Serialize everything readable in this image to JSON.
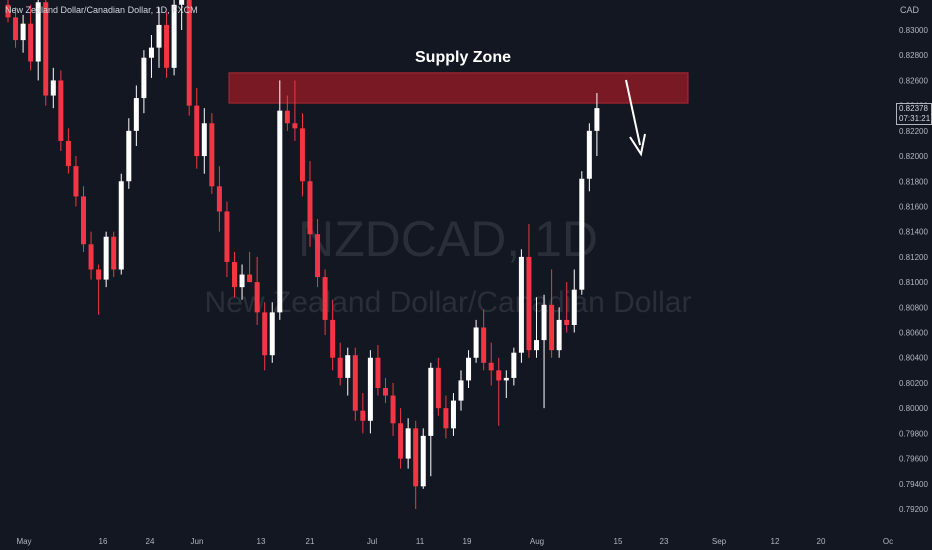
{
  "header": {
    "text": "New Zealand Dollar/Canadian Dollar, 1D, FXCM"
  },
  "axis_unit": "CAD",
  "price_tag": {
    "price": "0.82378",
    "countdown": "07:31:21"
  },
  "watermark": {
    "symbol": "NZDCAD, 1D",
    "name": "New Zealand Dollar/Canadian Dollar"
  },
  "colors": {
    "bull": "#ffffff",
    "bear": "#f23645",
    "zone": "#8b1a24",
    "background": "#131722"
  },
  "chart_data": {
    "type": "candlestick",
    "title": "",
    "y_ticks": [
      "0.83000",
      "0.82800",
      "0.82600",
      "0.82400",
      "0.82200",
      "0.82000",
      "0.81800",
      "0.81600",
      "0.81400",
      "0.81200",
      "0.81000",
      "0.80800",
      "0.80600",
      "0.80400",
      "0.80200",
      "0.80000",
      "0.79800",
      "0.79600",
      "0.79400",
      "0.79200"
    ],
    "x_ticks": [
      "May",
      "16",
      "24",
      "Jun",
      "13",
      "21",
      "Jul",
      "11",
      "19",
      "Aug",
      "15",
      "23",
      "Sep",
      "12",
      "20",
      "Oc"
    ],
    "ylim": [
      0.7912,
      0.8338
    ],
    "annotations": [
      {
        "type": "zone",
        "label": "Supply Zone",
        "y_low": 0.8242,
        "y_high": 0.8266
      },
      {
        "type": "arrow",
        "direction": "down"
      }
    ],
    "candles": [
      {
        "o": 0.832,
        "h": 0.8334,
        "l": 0.8306,
        "c": 0.831
      },
      {
        "o": 0.831,
        "h": 0.8318,
        "l": 0.8286,
        "c": 0.8292
      },
      {
        "o": 0.8292,
        "h": 0.8312,
        "l": 0.8282,
        "c": 0.8305
      },
      {
        "o": 0.8305,
        "h": 0.832,
        "l": 0.8268,
        "c": 0.8275
      },
      {
        "o": 0.8275,
        "h": 0.8328,
        "l": 0.826,
        "c": 0.8322
      },
      {
        "o": 0.8322,
        "h": 0.8334,
        "l": 0.824,
        "c": 0.8248
      },
      {
        "o": 0.8248,
        "h": 0.827,
        "l": 0.8238,
        "c": 0.826
      },
      {
        "o": 0.826,
        "h": 0.8268,
        "l": 0.8204,
        "c": 0.8212
      },
      {
        "o": 0.8212,
        "h": 0.8222,
        "l": 0.8186,
        "c": 0.8192
      },
      {
        "o": 0.8192,
        "h": 0.82,
        "l": 0.816,
        "c": 0.8168
      },
      {
        "o": 0.8168,
        "h": 0.8176,
        "l": 0.8124,
        "c": 0.813
      },
      {
        "o": 0.813,
        "h": 0.814,
        "l": 0.8102,
        "c": 0.811
      },
      {
        "o": 0.811,
        "h": 0.8114,
        "l": 0.8074,
        "c": 0.8102
      },
      {
        "o": 0.8102,
        "h": 0.814,
        "l": 0.8096,
        "c": 0.8136
      },
      {
        "o": 0.8136,
        "h": 0.814,
        "l": 0.8104,
        "c": 0.811
      },
      {
        "o": 0.811,
        "h": 0.8186,
        "l": 0.8106,
        "c": 0.818
      },
      {
        "o": 0.818,
        "h": 0.823,
        "l": 0.8174,
        "c": 0.822
      },
      {
        "o": 0.822,
        "h": 0.8256,
        "l": 0.8208,
        "c": 0.8246
      },
      {
        "o": 0.8246,
        "h": 0.8284,
        "l": 0.8234,
        "c": 0.8278
      },
      {
        "o": 0.8278,
        "h": 0.8296,
        "l": 0.8262,
        "c": 0.8286
      },
      {
        "o": 0.8286,
        "h": 0.8318,
        "l": 0.827,
        "c": 0.8304
      },
      {
        "o": 0.8304,
        "h": 0.8314,
        "l": 0.8262,
        "c": 0.827
      },
      {
        "o": 0.827,
        "h": 0.8328,
        "l": 0.8264,
        "c": 0.832
      },
      {
        "o": 0.832,
        "h": 0.8338,
        "l": 0.83,
        "c": 0.8326
      },
      {
        "o": 0.8326,
        "h": 0.8332,
        "l": 0.8232,
        "c": 0.824
      },
      {
        "o": 0.824,
        "h": 0.8254,
        "l": 0.819,
        "c": 0.82
      },
      {
        "o": 0.82,
        "h": 0.8238,
        "l": 0.8186,
        "c": 0.8226
      },
      {
        "o": 0.8226,
        "h": 0.8234,
        "l": 0.817,
        "c": 0.8176
      },
      {
        "o": 0.8176,
        "h": 0.8192,
        "l": 0.814,
        "c": 0.8156
      },
      {
        "o": 0.8156,
        "h": 0.8164,
        "l": 0.8104,
        "c": 0.8116
      },
      {
        "o": 0.8116,
        "h": 0.8124,
        "l": 0.8088,
        "c": 0.8096
      },
      {
        "o": 0.8096,
        "h": 0.8114,
        "l": 0.8086,
        "c": 0.8106
      },
      {
        "o": 0.8106,
        "h": 0.8124,
        "l": 0.81,
        "c": 0.81
      },
      {
        "o": 0.81,
        "h": 0.812,
        "l": 0.8066,
        "c": 0.8076
      },
      {
        "o": 0.8076,
        "h": 0.8084,
        "l": 0.803,
        "c": 0.8042
      },
      {
        "o": 0.8042,
        "h": 0.8084,
        "l": 0.8036,
        "c": 0.8076
      },
      {
        "o": 0.8076,
        "h": 0.826,
        "l": 0.807,
        "c": 0.8236
      },
      {
        "o": 0.8236,
        "h": 0.8248,
        "l": 0.822,
        "c": 0.8226
      },
      {
        "o": 0.8226,
        "h": 0.826,
        "l": 0.8212,
        "c": 0.8222
      },
      {
        "o": 0.8222,
        "h": 0.8234,
        "l": 0.8168,
        "c": 0.818
      },
      {
        "o": 0.818,
        "h": 0.8196,
        "l": 0.8128,
        "c": 0.8138
      },
      {
        "o": 0.8138,
        "h": 0.815,
        "l": 0.8096,
        "c": 0.8104
      },
      {
        "o": 0.8104,
        "h": 0.811,
        "l": 0.8058,
        "c": 0.807
      },
      {
        "o": 0.807,
        "h": 0.8086,
        "l": 0.803,
        "c": 0.804
      },
      {
        "o": 0.804,
        "h": 0.8052,
        "l": 0.8018,
        "c": 0.8024
      },
      {
        "o": 0.8024,
        "h": 0.8048,
        "l": 0.801,
        "c": 0.8042
      },
      {
        "o": 0.8042,
        "h": 0.8048,
        "l": 0.799,
        "c": 0.7998
      },
      {
        "o": 0.7998,
        "h": 0.8012,
        "l": 0.798,
        "c": 0.799
      },
      {
        "o": 0.799,
        "h": 0.8046,
        "l": 0.798,
        "c": 0.804
      },
      {
        "o": 0.804,
        "h": 0.805,
        "l": 0.801,
        "c": 0.8016
      },
      {
        "o": 0.8016,
        "h": 0.8024,
        "l": 0.8004,
        "c": 0.801
      },
      {
        "o": 0.801,
        "h": 0.802,
        "l": 0.7978,
        "c": 0.7988
      },
      {
        "o": 0.7988,
        "h": 0.8,
        "l": 0.7952,
        "c": 0.796
      },
      {
        "o": 0.796,
        "h": 0.7992,
        "l": 0.7952,
        "c": 0.7984
      },
      {
        "o": 0.7984,
        "h": 0.799,
        "l": 0.792,
        "c": 0.7938
      },
      {
        "o": 0.7938,
        "h": 0.7984,
        "l": 0.7936,
        "c": 0.7978
      },
      {
        "o": 0.7978,
        "h": 0.8036,
        "l": 0.7946,
        "c": 0.8032
      },
      {
        "o": 0.8032,
        "h": 0.804,
        "l": 0.7994,
        "c": 0.8
      },
      {
        "o": 0.8,
        "h": 0.801,
        "l": 0.7976,
        "c": 0.7984
      },
      {
        "o": 0.7984,
        "h": 0.8012,
        "l": 0.7978,
        "c": 0.8006
      },
      {
        "o": 0.8006,
        "h": 0.803,
        "l": 0.7998,
        "c": 0.8022
      },
      {
        "o": 0.8022,
        "h": 0.8046,
        "l": 0.8016,
        "c": 0.804
      },
      {
        "o": 0.804,
        "h": 0.807,
        "l": 0.8036,
        "c": 0.8064
      },
      {
        "o": 0.8064,
        "h": 0.8078,
        "l": 0.803,
        "c": 0.8036
      },
      {
        "o": 0.8036,
        "h": 0.8052,
        "l": 0.8018,
        "c": 0.803
      },
      {
        "o": 0.803,
        "h": 0.804,
        "l": 0.7986,
        "c": 0.8022
      },
      {
        "o": 0.8022,
        "h": 0.803,
        "l": 0.8008,
        "c": 0.8024
      },
      {
        "o": 0.8024,
        "h": 0.8048,
        "l": 0.8018,
        "c": 0.8044
      },
      {
        "o": 0.8044,
        "h": 0.8126,
        "l": 0.8036,
        "c": 0.812
      },
      {
        "o": 0.812,
        "h": 0.8146,
        "l": 0.804,
        "c": 0.8046
      },
      {
        "o": 0.8046,
        "h": 0.8088,
        "l": 0.804,
        "c": 0.8054
      },
      {
        "o": 0.8054,
        "h": 0.809,
        "l": 0.8,
        "c": 0.8082
      },
      {
        "o": 0.8082,
        "h": 0.811,
        "l": 0.804,
        "c": 0.8046
      },
      {
        "o": 0.8046,
        "h": 0.808,
        "l": 0.804,
        "c": 0.807
      },
      {
        "o": 0.807,
        "h": 0.81,
        "l": 0.806,
        "c": 0.8066
      },
      {
        "o": 0.8066,
        "h": 0.811,
        "l": 0.806,
        "c": 0.8094
      },
      {
        "o": 0.8094,
        "h": 0.8188,
        "l": 0.809,
        "c": 0.8182
      },
      {
        "o": 0.8182,
        "h": 0.8226,
        "l": 0.8172,
        "c": 0.822
      },
      {
        "o": 0.822,
        "h": 0.825,
        "l": 0.82,
        "c": 0.8238
      }
    ]
  }
}
